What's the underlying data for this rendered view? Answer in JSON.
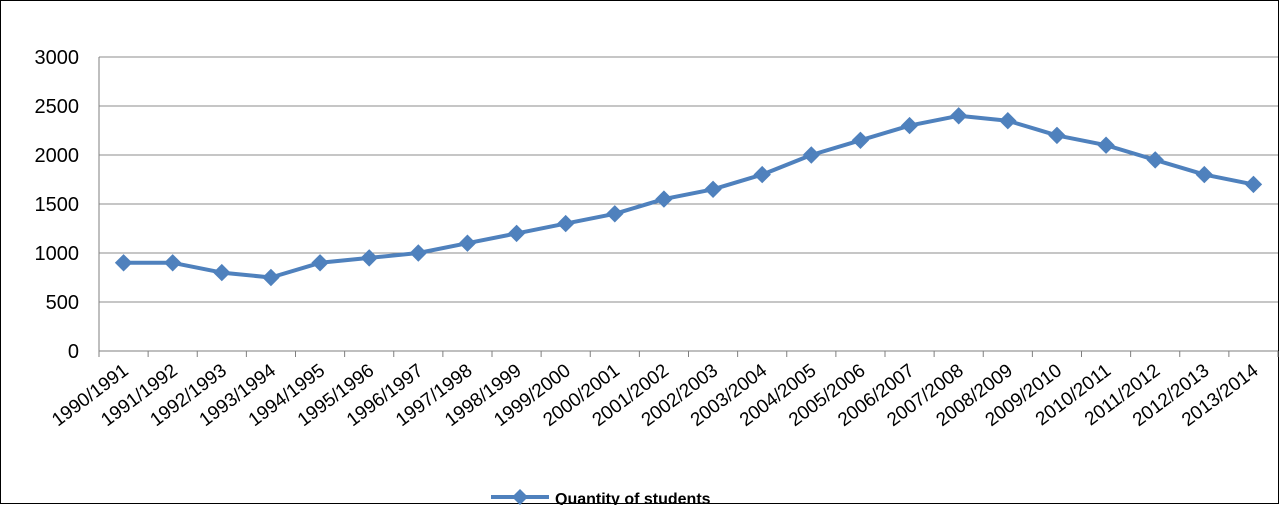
{
  "chart_data": {
    "type": "line",
    "title": "",
    "xlabel": "",
    "ylabel": "",
    "categories": [
      "1990/1991",
      "1991/1992",
      "1992/1993",
      "1993/1994",
      "1994/1995",
      "1995/1996",
      "1996/1997",
      "1997/1998",
      "1998/1999",
      "1999/2000",
      "2000/2001",
      "2001/2002",
      "2002/2003",
      "2003/2004",
      "2004/2005",
      "2005/2006",
      "2006/2007",
      "2007/2008",
      "2008/2009",
      "2009/2010",
      "2010/2011",
      "2011/2012",
      "2012/2013",
      "2013/2014"
    ],
    "series": [
      {
        "name": "Quantity of students",
        "color": "#4F81BD",
        "marker": "diamond",
        "values": [
          900,
          900,
          800,
          750,
          900,
          950,
          1000,
          1100,
          1200,
          1300,
          1400,
          1550,
          1650,
          1800,
          2000,
          2150,
          2300,
          2400,
          2350,
          2200,
          2100,
          1950,
          1800,
          1700
        ]
      }
    ],
    "ylim": [
      0,
      3000
    ],
    "yticks": [
      "0",
      "500",
      "1000",
      "1500",
      "2000",
      "2500",
      "3000"
    ],
    "ytick_values": [
      0,
      500,
      1000,
      1500,
      2000,
      2500,
      3000
    ],
    "grid": "horizontal",
    "legend_position": "bottom"
  }
}
